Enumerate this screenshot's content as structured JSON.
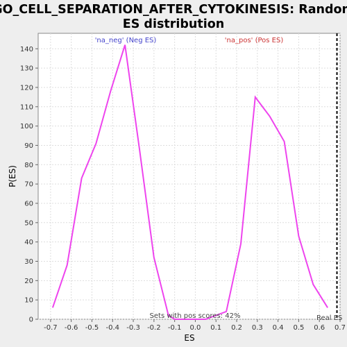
{
  "chart_data": {
    "type": "line",
    "title_line1": "GO_CELL_SEPARATION_AFTER_CYTOKINESIS: Random",
    "title_line2": "ES distribution",
    "xlabel": "ES",
    "ylabel": "P(ES)",
    "xlim": [
      -0.76,
      0.7
    ],
    "ylim": [
      0,
      148
    ],
    "xticks": [
      -0.7,
      -0.6,
      -0.5,
      -0.4,
      -0.3,
      -0.2,
      -0.1,
      0.0,
      0.1,
      0.2,
      0.3,
      0.4,
      0.5,
      0.6,
      0.7
    ],
    "xtick_labels": [
      "-0.7",
      "-0.6",
      "-0.5",
      "-0.4",
      "-0.3",
      "-0.2",
      "-0.1",
      "0.0",
      "0.1",
      "0.2",
      "0.3",
      "0.4",
      "0.5",
      "0.6",
      "0.7"
    ],
    "yticks": [
      0,
      10,
      20,
      30,
      40,
      50,
      60,
      70,
      80,
      90,
      100,
      110,
      120,
      130,
      140
    ],
    "grid": true,
    "line_color": "#ee44ee",
    "series": [
      {
        "x": [
          -0.69,
          -0.62,
          -0.55,
          -0.48,
          -0.41,
          -0.34,
          -0.27,
          -0.2,
          -0.13,
          -0.1,
          -0.02,
          0.05,
          0.15,
          0.22,
          0.29,
          0.36,
          0.43,
          0.5,
          0.57,
          0.64
        ],
        "y": [
          6,
          28,
          73,
          91,
          118,
          142,
          88,
          32,
          2,
          0,
          0,
          0,
          4,
          39,
          115,
          105,
          92,
          43,
          18,
          6
        ]
      }
    ],
    "annotations": {
      "neg_label": "'na_neg' (Neg ES)",
      "pos_label": "'na_pos' (Pos ES)",
      "sets_note": "Sets with pos scores: 42%",
      "real_es_label": "Real ES",
      "real_es_value": 0.685
    }
  }
}
